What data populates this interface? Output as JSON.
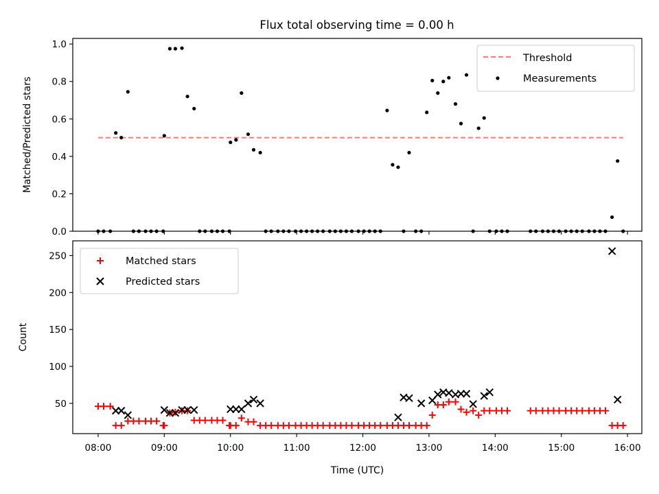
{
  "title": "Flux total observing time = 0.00 h",
  "colors": {
    "threshold": "#ff7777",
    "measurements": "#000000",
    "matched": "#ff0000",
    "predicted": "#000000"
  },
  "chart_data": [
    {
      "type": "scatter",
      "ylabel": "Matched/Predicted stars",
      "xlim": [
        "07:37",
        "16:13"
      ],
      "ylim": [
        0,
        1.03
      ],
      "yticks": [
        0.0,
        0.2,
        0.4,
        0.6,
        0.8,
        1.0
      ],
      "ytick_labels": [
        "0.0",
        "0.2",
        "0.4",
        "0.6",
        "0.8",
        "1.0"
      ],
      "legend_position": "upper-right",
      "threshold": {
        "name": "Threshold",
        "value": 0.5,
        "x_range": [
          "08:00",
          "15:56"
        ],
        "style": "dashed"
      },
      "series": [
        {
          "name": "Measurements",
          "marker": "dot",
          "x": [
            "08:00",
            "08:05",
            "08:11",
            "08:16",
            "08:21",
            "08:27",
            "08:32",
            "08:37",
            "08:43",
            "08:48",
            "08:53",
            "08:59",
            "09:00",
            "09:05",
            "09:10",
            "09:16",
            "09:21",
            "09:27",
            "09:32",
            "09:37",
            "09:43",
            "09:48",
            "09:53",
            "09:59",
            "10:00",
            "10:05",
            "10:10",
            "10:16",
            "10:21",
            "10:27",
            "10:32",
            "10:37",
            "10:43",
            "10:48",
            "10:53",
            "10:59",
            "11:04",
            "11:09",
            "11:14",
            "11:19",
            "11:24",
            "11:30",
            "11:35",
            "11:40",
            "11:45",
            "11:50",
            "11:56",
            "12:01",
            "12:06",
            "12:11",
            "12:16",
            "12:22",
            "12:27",
            "12:32",
            "12:37",
            "12:42",
            "12:48",
            "12:53",
            "12:58",
            "13:03",
            "13:08",
            "13:13",
            "13:18",
            "13:24",
            "13:29",
            "13:34",
            "13:40",
            "13:45",
            "13:50",
            "13:55",
            "14:01",
            "14:06",
            "14:11",
            "14:32",
            "14:37",
            "14:43",
            "14:48",
            "14:53",
            "14:58",
            "15:04",
            "15:09",
            "15:14",
            "15:19",
            "15:25",
            "15:30",
            "15:35",
            "15:40",
            "15:46",
            "15:51",
            "15:56"
          ],
          "y": [
            0.0,
            0.0,
            0.0,
            0.525,
            0.5,
            0.745,
            0.0,
            0.0,
            0.0,
            0.0,
            0.0,
            0.0,
            0.51,
            0.975,
            0.975,
            0.978,
            0.72,
            0.655,
            0.0,
            0.0,
            0.0,
            0.0,
            0.0,
            0.0,
            0.475,
            0.488,
            0.738,
            0.518,
            0.435,
            0.42,
            0.0,
            0.0,
            0.0,
            0.0,
            0.0,
            0.0,
            0.0,
            0.0,
            0.0,
            0.0,
            0.0,
            0.0,
            0.0,
            0.0,
            0.0,
            0.0,
            0.0,
            0.0,
            0.0,
            0.0,
            0.0,
            0.645,
            0.355,
            0.342,
            0.0,
            0.42,
            0.0,
            0.0,
            0.635,
            0.805,
            0.738,
            0.8,
            0.82,
            0.68,
            0.575,
            0.835,
            0.0,
            0.55,
            0.605,
            0.0,
            0.0,
            0.0,
            0.0,
            0.0,
            0.0,
            0.0,
            0.0,
            0.0,
            0.0,
            0.0,
            0.0,
            0.0,
            0.0,
            0.0,
            0.0,
            0.0,
            0.0,
            0.075,
            0.375,
            0.0
          ]
        }
      ]
    },
    {
      "type": "scatter",
      "xlabel": "Time (UTC)",
      "ylabel": "Count",
      "xlim": [
        "07:37",
        "16:13"
      ],
      "ylim": [
        9,
        270
      ],
      "xticks": [
        "08:00",
        "09:00",
        "10:00",
        "11:00",
        "12:00",
        "13:00",
        "14:00",
        "15:00",
        "16:00"
      ],
      "xtick_labels": [
        "08:00",
        "09:00",
        "10:00",
        "11:00",
        "12:00",
        "13:00",
        "14:00",
        "15:00",
        "16:00"
      ],
      "yticks": [
        50,
        100,
        150,
        200,
        250
      ],
      "ytick_labels": [
        "50",
        "100",
        "150",
        "200",
        "250"
      ],
      "legend_position": "upper-left",
      "series": [
        {
          "name": "Matched stars",
          "marker": "plus",
          "x": [
            "08:00",
            "08:05",
            "08:11",
            "08:16",
            "08:21",
            "08:27",
            "08:32",
            "08:37",
            "08:43",
            "08:48",
            "08:53",
            "08:59",
            "09:00",
            "09:05",
            "09:10",
            "09:16",
            "09:21",
            "09:27",
            "09:32",
            "09:37",
            "09:43",
            "09:48",
            "09:53",
            "09:59",
            "10:00",
            "10:05",
            "10:10",
            "10:16",
            "10:21",
            "10:27",
            "10:32",
            "10:37",
            "10:43",
            "10:48",
            "10:53",
            "10:59",
            "11:04",
            "11:09",
            "11:14",
            "11:19",
            "11:24",
            "11:30",
            "11:35",
            "11:40",
            "11:45",
            "11:50",
            "11:56",
            "12:01",
            "12:06",
            "12:11",
            "12:16",
            "12:22",
            "12:27",
            "12:32",
            "12:37",
            "12:42",
            "12:48",
            "12:53",
            "12:58",
            "13:03",
            "13:08",
            "13:13",
            "13:18",
            "13:24",
            "13:29",
            "13:34",
            "13:40",
            "13:45",
            "13:50",
            "13:55",
            "14:01",
            "14:06",
            "14:11",
            "14:32",
            "14:37",
            "14:43",
            "14:48",
            "14:53",
            "14:58",
            "15:04",
            "15:09",
            "15:14",
            "15:19",
            "15:25",
            "15:30",
            "15:35",
            "15:40",
            "15:46",
            "15:51",
            "15:56"
          ],
          "y": [
            46,
            46,
            46,
            20,
            20,
            26,
            26,
            26,
            26,
            26,
            26,
            20,
            20,
            37,
            38,
            40,
            40,
            27,
            27,
            27,
            27,
            27,
            27,
            20,
            20,
            20,
            30,
            25,
            25,
            20,
            20,
            20,
            20,
            20,
            20,
            20,
            20,
            20,
            20,
            20,
            20,
            20,
            20,
            20,
            20,
            20,
            20,
            20,
            20,
            20,
            20,
            20,
            20,
            20,
            20,
            20,
            20,
            20,
            20,
            34,
            48,
            48,
            52,
            52,
            42,
            38,
            40,
            34,
            40,
            40,
            40,
            40,
            40,
            40,
            40,
            40,
            40,
            40,
            40,
            40,
            40,
            40,
            40,
            40,
            40,
            40,
            40,
            20,
            20,
            20
          ]
        },
        {
          "name": "Predicted stars",
          "marker": "x",
          "x": [
            "08:16",
            "08:21",
            "08:27",
            "09:00",
            "09:05",
            "09:10",
            "09:16",
            "09:21",
            "09:27",
            "10:00",
            "10:05",
            "10:10",
            "10:16",
            "10:21",
            "10:27",
            "12:32",
            "12:37",
            "12:42",
            "12:53",
            "13:03",
            "13:08",
            "13:13",
            "13:18",
            "13:24",
            "13:29",
            "13:34",
            "13:40",
            "13:50",
            "13:55",
            "15:46",
            "15:51"
          ],
          "y": [
            40,
            40,
            34,
            41,
            37,
            37,
            41,
            41,
            41,
            42,
            42,
            42,
            50,
            55,
            50,
            31,
            58,
            57,
            50,
            54,
            62,
            65,
            64,
            62,
            63,
            63,
            49,
            60,
            65,
            256,
            55
          ]
        }
      ]
    }
  ]
}
